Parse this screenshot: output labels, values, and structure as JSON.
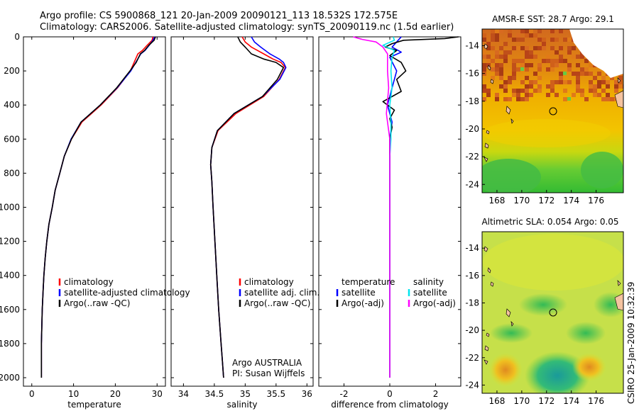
{
  "header": {
    "line1": "Argo profile: CS 5900868_121 20-Jan-2009 20090121_113 18.532S 172.575E",
    "line2": "Climatology: CARS2006. Satellite-adjusted climatology: synTS_20090119.nc (1.5d earlier)"
  },
  "colors": {
    "climatology": "#ff0000",
    "satellite": "#0000ff",
    "argo": "#000000",
    "sal_satellite": "#00e5ee",
    "sal_argo": "#ff00ff"
  },
  "chart_data": [
    {
      "type": "line",
      "id": "temperature",
      "xlabel": "temperature",
      "ylabel": "",
      "xlim": [
        -2,
        32
      ],
      "ylim": [
        2050,
        0
      ],
      "xticks": [
        0,
        10,
        20,
        30
      ],
      "yticks": [
        0,
        200,
        400,
        600,
        800,
        1000,
        1200,
        1400,
        1600,
        1800,
        2000
      ],
      "legend": [
        "climatology",
        "satellite-adjusted climatology",
        "Argo(..raw -QC)"
      ],
      "series": [
        {
          "name": "climatology",
          "x": [
            29.0,
            28.8,
            27.6,
            26.5,
            25.4,
            24.5,
            23.6,
            20.5,
            16.6,
            12.0,
            9.5,
            7.8,
            6.7,
            5.6,
            4.9,
            4.1,
            3.6,
            3.2,
            2.9,
            2.7,
            2.5,
            2.4,
            2.3,
            2.3
          ],
          "y": [
            0,
            20,
            50,
            80,
            100,
            150,
            200,
            300,
            400,
            500,
            600,
            700,
            800,
            900,
            1000,
            1100,
            1200,
            1300,
            1400,
            1500,
            1600,
            1700,
            1800,
            2000
          ]
        },
        {
          "name": "satellite",
          "x": [
            29.4,
            29.0,
            28.1,
            27.1,
            26.1,
            24.9,
            23.7,
            20.4,
            16.4,
            11.8,
            9.4,
            7.8,
            6.7,
            5.6,
            4.9,
            4.1,
            3.6,
            3.2,
            2.9,
            2.7,
            2.5,
            2.4,
            2.3,
            2.3
          ],
          "y": [
            0,
            20,
            50,
            80,
            100,
            150,
            200,
            300,
            400,
            500,
            600,
            700,
            800,
            900,
            1000,
            1100,
            1200,
            1300,
            1400,
            1500,
            1600,
            1700,
            1800,
            2000
          ]
        },
        {
          "name": "argo",
          "x": [
            29.6,
            29.3,
            28.0,
            27.0,
            26.0,
            25.0,
            23.5,
            20.3,
            16.4,
            11.8,
            9.5,
            7.8,
            6.7,
            5.6,
            4.9,
            4.1,
            3.6,
            3.2,
            2.9,
            2.7,
            2.5,
            2.4,
            2.3,
            2.3
          ],
          "y": [
            0,
            20,
            50,
            80,
            100,
            150,
            200,
            300,
            400,
            500,
            600,
            700,
            800,
            900,
            1000,
            1100,
            1200,
            1300,
            1400,
            1500,
            1600,
            1700,
            1800,
            2000
          ]
        }
      ]
    },
    {
      "type": "line",
      "id": "salinity",
      "xlabel": "salinity",
      "ylabel": "",
      "xlim": [
        33.8,
        36.1
      ],
      "ylim": [
        2050,
        0
      ],
      "xticks": [
        34,
        34.5,
        35,
        35.5,
        36
      ],
      "yticks": [
        0,
        200,
        400,
        600,
        800,
        1000,
        1200,
        1400,
        1600,
        1800,
        2000
      ],
      "legend": [
        "climatology",
        "satellite adj. clim.",
        "Argo(..raw -QC)"
      ],
      "annotation": [
        "Argo AUSTRALIA",
        "PI: Susan Wijffels"
      ],
      "series": [
        {
          "name": "climatology",
          "x": [
            34.95,
            35.0,
            35.1,
            35.3,
            35.45,
            35.58,
            35.65,
            35.55,
            35.3,
            34.85,
            34.56,
            34.46,
            34.44,
            34.46,
            34.48,
            34.51,
            34.54,
            34.57,
            34.59,
            34.61,
            34.63,
            34.65
          ],
          "y": [
            0,
            30,
            60,
            100,
            130,
            150,
            180,
            250,
            350,
            450,
            550,
            650,
            750,
            850,
            1000,
            1200,
            1400,
            1600,
            1700,
            1800,
            1900,
            2000
          ]
        },
        {
          "name": "satellite",
          "x": [
            35.1,
            35.15,
            35.25,
            35.4,
            35.55,
            35.62,
            35.66,
            35.56,
            35.28,
            34.82,
            34.55,
            34.46,
            34.44,
            34.46,
            34.48,
            34.51,
            34.54,
            34.57,
            34.59,
            34.61,
            34.63,
            34.65
          ],
          "y": [
            0,
            30,
            60,
            100,
            130,
            150,
            180,
            250,
            350,
            450,
            550,
            650,
            750,
            850,
            1000,
            1200,
            1400,
            1600,
            1700,
            1800,
            1900,
            2000
          ]
        },
        {
          "name": "argo",
          "x": [
            34.88,
            34.92,
            35.0,
            35.1,
            35.3,
            35.5,
            35.62,
            35.52,
            35.28,
            34.82,
            34.55,
            34.46,
            34.44,
            34.46,
            34.48,
            34.51,
            34.54,
            34.57,
            34.59,
            34.61,
            34.63,
            34.65
          ],
          "y": [
            0,
            30,
            60,
            100,
            130,
            150,
            180,
            250,
            350,
            450,
            550,
            650,
            750,
            850,
            1000,
            1200,
            1400,
            1600,
            1700,
            1800,
            1900,
            2000
          ]
        }
      ]
    },
    {
      "type": "line",
      "id": "difference",
      "xlabel": "difference from climatology",
      "ylabel": "",
      "xlim": [
        -3.1,
        3.1
      ],
      "ylim": [
        2050,
        0
      ],
      "xticks": [
        -2,
        0,
        2
      ],
      "yticks": [
        0,
        200,
        400,
        600,
        800,
        1000,
        1200,
        1400,
        1600,
        1800,
        2000
      ],
      "legend_headers": [
        "temperature",
        "salinity"
      ],
      "legend": [
        "satellite",
        "Argo(-adj)",
        "satellite",
        "Argo(-adj)"
      ],
      "series": [
        {
          "name": "temperature satellite",
          "x": [
            0.5,
            0.3,
            0.1,
            0.5,
            0.0,
            0.3,
            0.1,
            -0.1,
            0.1,
            0.0,
            0.0,
            0.0,
            0.0
          ],
          "y": [
            0,
            30,
            60,
            90,
            120,
            200,
            300,
            400,
            500,
            600,
            800,
            1000,
            2000
          ]
        },
        {
          "name": "temperature argo",
          "x": [
            3.0,
            2.4,
            0.6,
            0.1,
            -0.2,
            0.3,
            0.0,
            0.5,
            0.7,
            0.3,
            0.5,
            -0.3,
            0.2,
            0.0,
            0.1,
            0.0,
            0.0,
            0.0,
            0.0
          ],
          "y": [
            0,
            10,
            20,
            40,
            60,
            80,
            110,
            150,
            200,
            250,
            320,
            380,
            430,
            480,
            530,
            600,
            800,
            1000,
            2000
          ]
        },
        {
          "name": "salinity satellite",
          "x": [
            0.15,
            0.2,
            -0.3,
            0.2,
            0.1,
            0.05,
            0.1,
            0.0,
            0.05,
            0.05,
            0.0,
            0.0,
            0.0,
            0.0,
            0.0
          ],
          "y": [
            0,
            20,
            50,
            80,
            120,
            200,
            300,
            400,
            500,
            600,
            700,
            800,
            1000,
            1500,
            2000
          ]
        },
        {
          "name": "salinity argo",
          "x": [
            -1.6,
            -1.2,
            -0.6,
            -0.3,
            -0.1,
            -0.1,
            -0.05,
            -0.15,
            0.0,
            0.0,
            0.0
          ],
          "y": [
            0,
            15,
            30,
            60,
            100,
            200,
            300,
            450,
            600,
            1000,
            2000
          ]
        }
      ]
    }
  ],
  "maps": {
    "sst": {
      "title": "AMSR-E SST: 28.7 Argo: 29.1",
      "xticks": [
        168,
        170,
        172,
        174,
        176
      ],
      "yticks": [
        -14,
        -16,
        -18,
        -20,
        -22,
        -24
      ],
      "xlim": [
        166.8,
        178.2
      ],
      "ylim": [
        -24.6,
        -12.8
      ],
      "float_position": [
        172.575,
        -18.532
      ]
    },
    "sla": {
      "title": "Altimetric SLA: 0.054 Argo: 0.05",
      "xticks": [
        168,
        170,
        172,
        174,
        176
      ],
      "yticks": [
        -14,
        -16,
        -18,
        -20,
        -22,
        -24
      ],
      "xlim": [
        166.8,
        178.2
      ],
      "ylim": [
        -24.6,
        -12.8
      ],
      "float_position": [
        172.575,
        -18.532
      ]
    }
  },
  "footer": {
    "credit": "CSIRO 25-Jan-2009 10:32:39"
  }
}
